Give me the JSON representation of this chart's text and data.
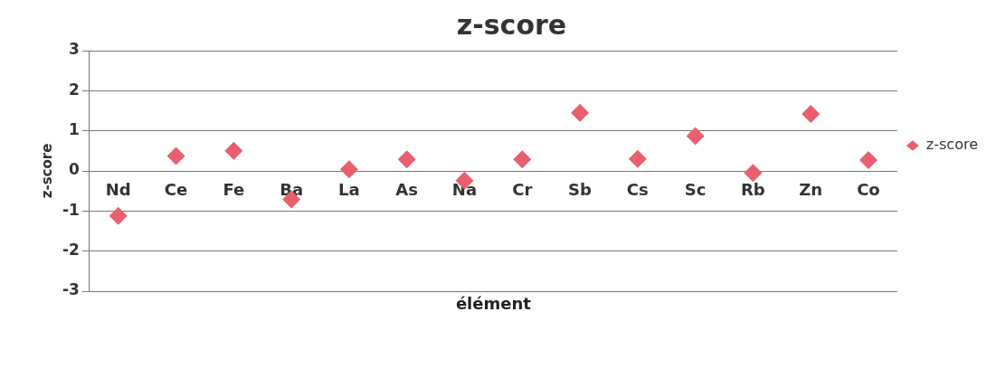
{
  "chart_data": {
    "type": "scatter",
    "title": "z-score",
    "xlabel": "élément",
    "ylabel": "z-score",
    "categories": [
      "Nd",
      "Ce",
      "Fe",
      "Ba",
      "La",
      "As",
      "Na",
      "Cr",
      "Sb",
      "Cs",
      "Sc",
      "Rb",
      "Zn",
      "Co"
    ],
    "series": [
      {
        "name": "z-score",
        "color": "#e8606e",
        "values": [
          -1.12,
          0.37,
          0.5,
          -0.71,
          0.04,
          0.29,
          -0.24,
          0.29,
          1.45,
          0.3,
          0.87,
          -0.05,
          1.42,
          0.27
        ]
      }
    ],
    "ylim": [
      -3,
      3
    ],
    "yticks": [
      -3,
      -2,
      -1,
      0,
      1,
      2,
      3
    ],
    "grid": "y",
    "legend": "right",
    "marker": "diamond"
  }
}
